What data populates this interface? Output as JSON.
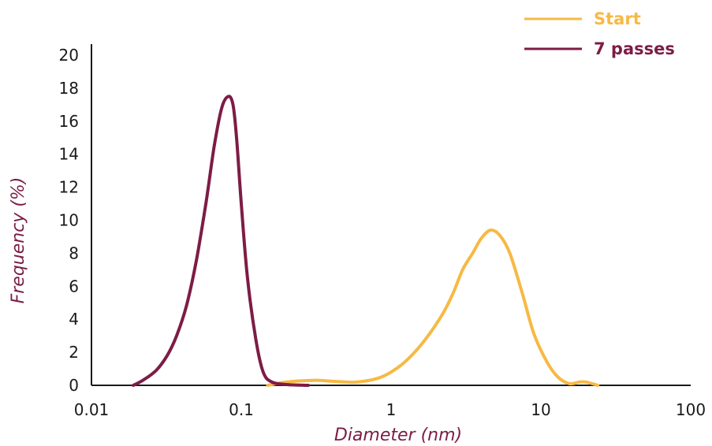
{
  "chart_data": {
    "type": "line",
    "xscale": "log",
    "xlim": [
      0.01,
      100
    ],
    "ylim": [
      0,
      20
    ],
    "xlabel": "Diameter (nm)",
    "ylabel": "Frequency (%)",
    "xticks": [
      "0.01",
      "0.1",
      "1",
      "10",
      "100"
    ],
    "yticks": [
      "0",
      "2",
      "4",
      "6",
      "8",
      "10",
      "12",
      "14",
      "16",
      "18",
      "20"
    ],
    "grid": false,
    "legend_position": "top-right",
    "series": [
      {
        "name": "Start",
        "color": "#f7b944",
        "x": [
          0.15,
          0.2,
          0.3,
          0.4,
          0.5,
          0.6,
          0.8,
          1.0,
          1.3,
          1.7,
          2.2,
          2.6,
          3.0,
          3.5,
          4.0,
          4.6,
          5.3,
          6.2,
          7.5,
          9.0,
          11.0,
          13.0,
          15.5,
          18.0,
          20.0,
          24.0
        ],
        "y": [
          0.0,
          0.2,
          0.3,
          0.25,
          0.2,
          0.2,
          0.4,
          0.8,
          1.6,
          2.8,
          4.3,
          5.6,
          7.0,
          8.0,
          8.9,
          9.4,
          9.1,
          8.0,
          5.6,
          3.1,
          1.4,
          0.5,
          0.1,
          0.2,
          0.2,
          0.0
        ]
      },
      {
        "name": "7 passes",
        "color": "#7d1c46",
        "x": [
          0.019,
          0.022,
          0.027,
          0.032,
          0.037,
          0.043,
          0.05,
          0.058,
          0.066,
          0.074,
          0.082,
          0.088,
          0.093,
          0.1,
          0.11,
          0.125,
          0.14,
          0.16,
          0.2,
          0.28
        ],
        "y": [
          0.0,
          0.3,
          0.9,
          1.8,
          3.0,
          4.8,
          7.5,
          11.0,
          14.5,
          16.8,
          17.5,
          17.0,
          15.0,
          11.0,
          6.5,
          2.8,
          0.8,
          0.2,
          0.05,
          0.0
        ]
      }
    ]
  }
}
